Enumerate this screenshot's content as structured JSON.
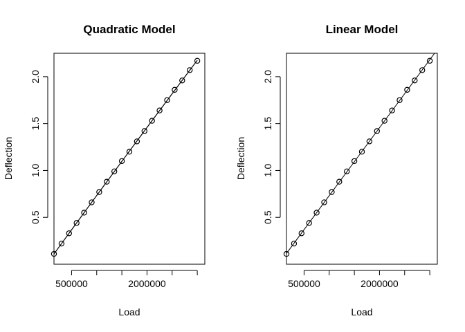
{
  "chart_data": [
    {
      "type": "scatter",
      "title": "Quadratic Model",
      "xlabel": "Load",
      "ylabel": "Deflection",
      "xlim": [
        150000,
        3150000
      ],
      "ylim": [
        0.0,
        2.25
      ],
      "x_tick_labels": [
        "500000",
        "2000000"
      ],
      "y_tick_labels": [
        "0.5",
        "1.0",
        "1.5",
        "2.0"
      ],
      "grid": false,
      "legend": "none",
      "series": [
        {
          "x": [
            150000,
            300000,
            450000,
            600000,
            750000,
            900000,
            1050000,
            1200000,
            1350000,
            1500000,
            1650000,
            1800000,
            1950000,
            2100000,
            2250000,
            2400000,
            2550000,
            2700000,
            2850000,
            3000000
          ],
          "y": [
            0.11,
            0.22,
            0.33,
            0.44,
            0.55,
            0.66,
            0.77,
            0.88,
            0.99,
            1.1,
            1.2,
            1.31,
            1.42,
            1.53,
            1.64,
            1.75,
            1.86,
            1.96,
            2.07,
            2.17
          ]
        }
      ],
      "fit_line": {
        "kind": "quadratic",
        "spans": "data"
      }
    },
    {
      "type": "scatter",
      "title": "Linear Model",
      "xlabel": "Load",
      "ylabel": "Deflection",
      "xlim": [
        150000,
        3150000
      ],
      "ylim": [
        0.0,
        2.25
      ],
      "x_tick_labels": [
        "500000",
        "2000000"
      ],
      "y_tick_labels": [
        "0.5",
        "1.0",
        "1.5",
        "2.0"
      ],
      "grid": false,
      "legend": "none",
      "series": [
        {
          "x": [
            150000,
            300000,
            450000,
            600000,
            750000,
            900000,
            1050000,
            1200000,
            1350000,
            1500000,
            1650000,
            1800000,
            1950000,
            2100000,
            2250000,
            2400000,
            2550000,
            2700000,
            2850000,
            3000000
          ],
          "y": [
            0.11,
            0.22,
            0.33,
            0.44,
            0.55,
            0.66,
            0.77,
            0.88,
            0.99,
            1.1,
            1.2,
            1.31,
            1.42,
            1.53,
            1.64,
            1.75,
            1.86,
            1.96,
            2.07,
            2.17
          ]
        }
      ],
      "fit_line": {
        "kind": "linear",
        "spans": "full-plot"
      }
    }
  ]
}
